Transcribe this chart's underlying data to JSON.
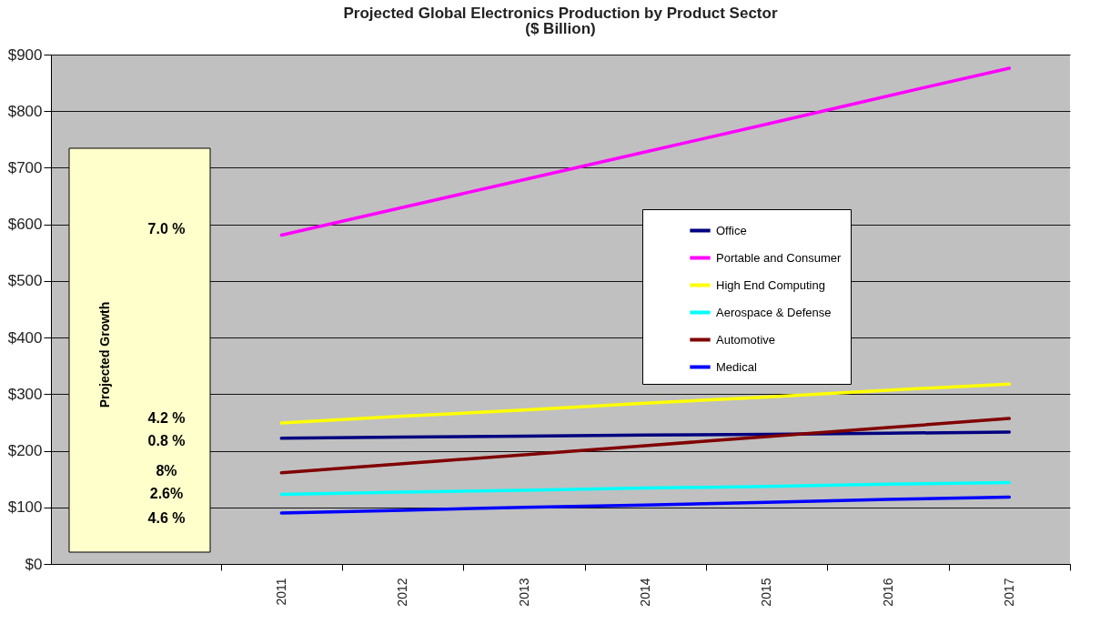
{
  "chart_data": {
    "type": "line",
    "title": "Projected Global Electronics Production by Product Sector",
    "subtitle": "($ Billion)",
    "categories": [
      "2011",
      "2012",
      "2013",
      "2014",
      "2015",
      "2016",
      "2017"
    ],
    "series": [
      {
        "name": "Office",
        "color": "#000080",
        "values": [
          222,
          224,
          226,
          228,
          229,
          231,
          233
        ]
      },
      {
        "name": "Portable and Consumer",
        "color": "#ff00ff",
        "values": [
          581,
          630,
          679,
          728,
          777,
          827,
          876
        ]
      },
      {
        "name": "High End Computing",
        "color": "#ffff00",
        "values": [
          249,
          261,
          272,
          284,
          295,
          307,
          318
        ]
      },
      {
        "name": "Aerospace & Defense",
        "color": "#00ffff",
        "values": [
          123,
          127,
          130,
          134,
          137,
          141,
          144
        ]
      },
      {
        "name": "Automotive",
        "color": "#800000",
        "values": [
          161,
          177,
          193,
          209,
          225,
          241,
          257
        ]
      },
      {
        "name": "Medical",
        "color": "#0000ff",
        "values": [
          90,
          95,
          100,
          104,
          109,
          114,
          118
        ]
      }
    ],
    "ylim": [
      0,
      900
    ],
    "yticks": [
      {
        "value": 0,
        "label": "$0"
      },
      {
        "value": 100,
        "label": "$100"
      },
      {
        "value": 200,
        "label": "$200"
      },
      {
        "value": 300,
        "label": "$300"
      },
      {
        "value": 400,
        "label": "$400"
      },
      {
        "value": 500,
        "label": "$500"
      },
      {
        "value": 600,
        "label": "$600"
      },
      {
        "value": 700,
        "label": "$700"
      },
      {
        "value": 800,
        "label": "$800"
      },
      {
        "value": 900,
        "label": "$900"
      }
    ],
    "grid": "y",
    "legend": "right",
    "marker": "none",
    "line_style": "solid",
    "annotations": [
      "Projected Growth",
      "7.0 %",
      "4.2 %",
      "0.8 %",
      "8%",
      "2.6%",
      "4.6 %"
    ]
  }
}
